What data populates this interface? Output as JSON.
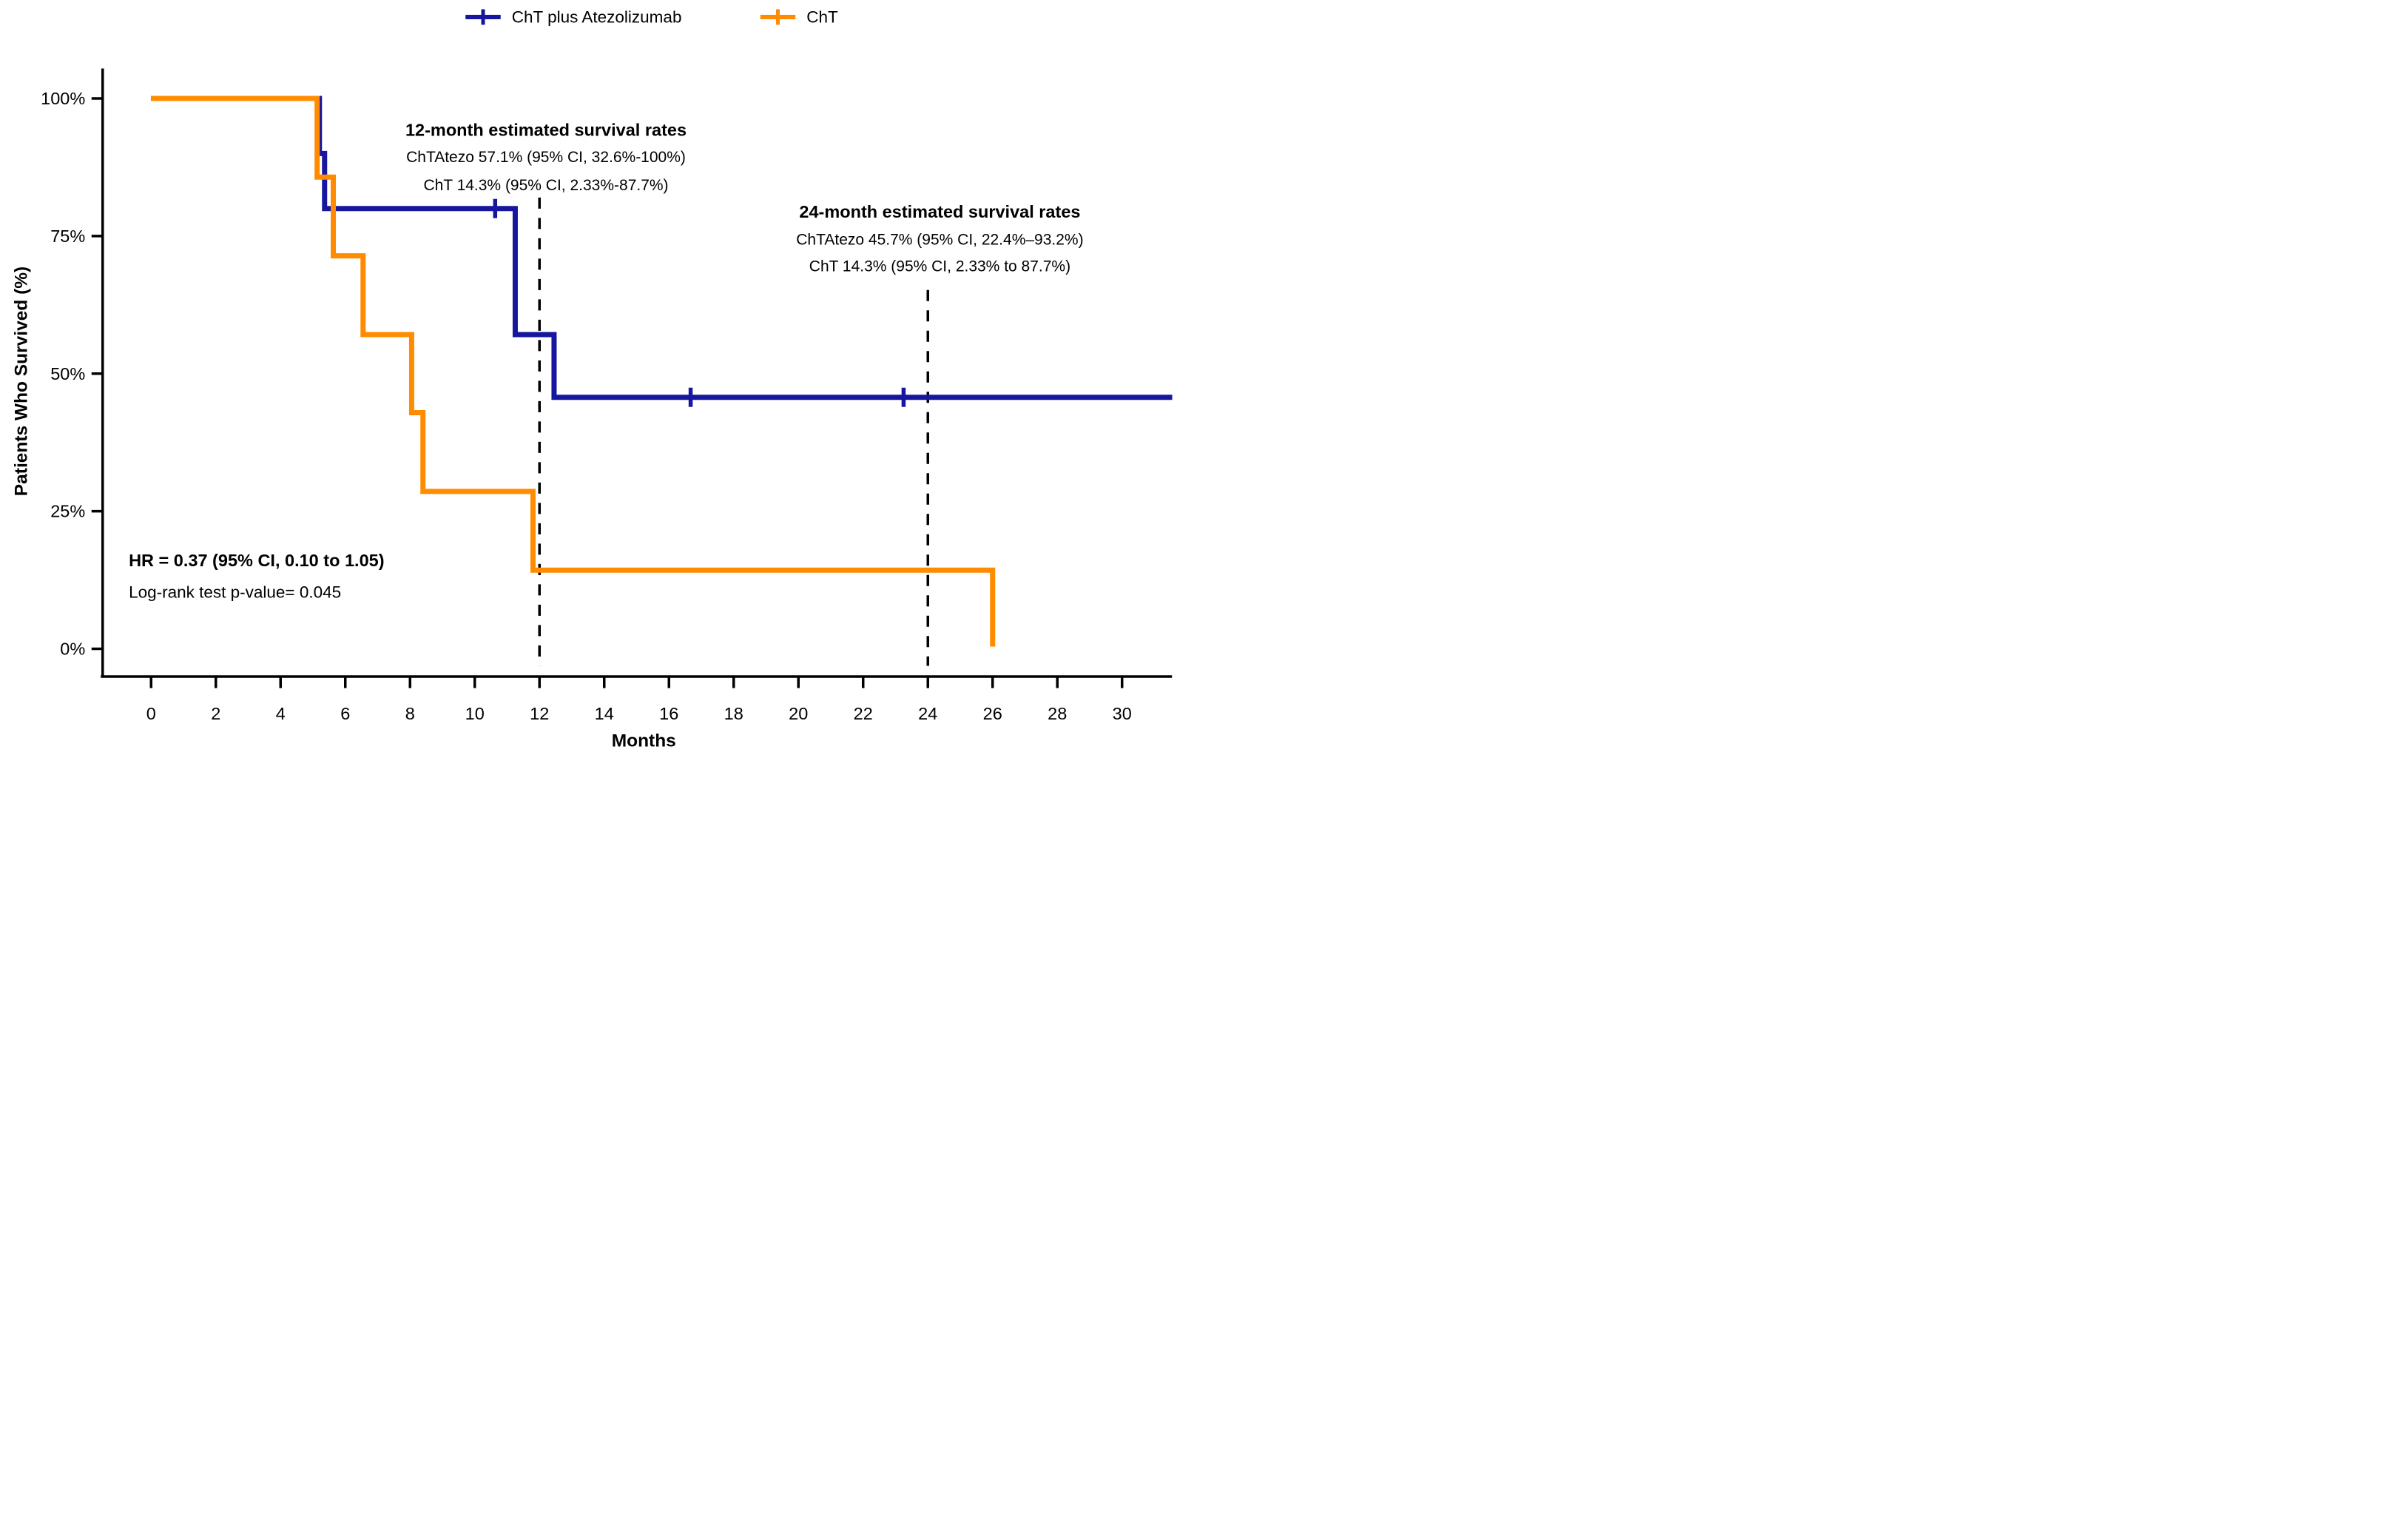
{
  "page": {
    "background": "#ffffff"
  },
  "legend": {
    "position": "top-center",
    "items": [
      {
        "label": "ChT plus Atezolizumab",
        "color": "#16169E",
        "symbol": "line-with-censor-tick"
      },
      {
        "label": "ChT",
        "color": "#FF8C00",
        "symbol": "line-with-censor-tick"
      }
    ]
  },
  "chart_data": {
    "type": "line",
    "subtype": "kaplan-meier-step",
    "title": "",
    "xlabel": "Months",
    "ylabel": "Patients Who Survived (%)",
    "xlim": [
      0,
      31.5
    ],
    "ylim": [
      0,
      100
    ],
    "grid": false,
    "legend_position": "top-center",
    "x_ticks": [
      0,
      2,
      4,
      6,
      8,
      10,
      12,
      14,
      16,
      18,
      20,
      22,
      24,
      26,
      28,
      30
    ],
    "y_ticks": [
      {
        "value": 0,
        "label": "0%"
      },
      {
        "value": 25,
        "label": "25%"
      },
      {
        "value": 50,
        "label": "50%"
      },
      {
        "value": 75,
        "label": "75%"
      },
      {
        "value": 100,
        "label": "100%"
      }
    ],
    "series": [
      {
        "name": "ChT plus Atezolizumab",
        "color": "#16169E",
        "steps": [
          [
            0,
            100
          ],
          [
            5.2,
            100
          ],
          [
            5.2,
            90
          ],
          [
            5.36,
            90
          ],
          [
            5.36,
            80
          ],
          [
            11.25,
            80
          ],
          [
            11.25,
            57.1
          ],
          [
            12.45,
            57.1
          ],
          [
            12.45,
            45.7
          ],
          [
            31.55,
            45.7
          ]
        ],
        "censor_marks": [
          [
            10.63,
            80
          ],
          [
            16.67,
            45.7
          ],
          [
            23.25,
            45.7
          ]
        ]
      },
      {
        "name": "ChT",
        "color": "#FF8C00",
        "steps": [
          [
            0,
            100
          ],
          [
            5.13,
            100
          ],
          [
            5.13,
            85.7
          ],
          [
            5.63,
            85.7
          ],
          [
            5.63,
            71.4
          ],
          [
            6.55,
            71.4
          ],
          [
            6.55,
            57.1
          ],
          [
            8.05,
            57.1
          ],
          [
            8.05,
            42.9
          ],
          [
            8.4,
            42.9
          ],
          [
            8.4,
            28.6
          ],
          [
            11.8,
            28.6
          ],
          [
            11.8,
            14.3
          ],
          [
            26.0,
            14.3
          ],
          [
            26.0,
            0.4
          ]
        ],
        "censor_marks": []
      }
    ],
    "reference_lines": [
      {
        "x": 12,
        "style": "dashed",
        "color": "#000000",
        "p_top": 82.0,
        "p_bottom": -3.1
      },
      {
        "x": 24,
        "style": "dashed",
        "color": "#000000",
        "p_top": 65.2,
        "p_bottom": -3.1
      }
    ],
    "annotations": [
      {
        "id": "rates-12-month",
        "align": "middle",
        "x": 12.2,
        "lines": [
          {
            "text": "12-month estimated survival rates",
            "p": 94.3,
            "bold": true,
            "size": 47
          },
          {
            "text": "ChTAtezo 57.1% (95% CI, 32.6%-100%)",
            "p": 89.3,
            "bold": false,
            "size": 42
          },
          {
            "text": "ChT 14.3% (95% CI, 2.33%-87.7%)",
            "p": 84.2,
            "bold": false,
            "size": 42
          }
        ]
      },
      {
        "id": "rates-24-month",
        "align": "middle",
        "x": 24.37,
        "lines": [
          {
            "text": "24-month estimated survival rates",
            "p": 79.4,
            "bold": true,
            "size": 47
          },
          {
            "text": "ChTAtezo 45.7% (95% CI, 22.4%–93.2%)",
            "p": 74.3,
            "bold": false,
            "size": 42
          },
          {
            "text": "ChT 14.3% (95% CI, 2.33% to 87.7%)",
            "p": 69.5,
            "bold": false,
            "size": 42
          }
        ]
      },
      {
        "id": "hazard-ratio",
        "align": "start",
        "x": -0.69,
        "lines": [
          {
            "text": "HR = 0.37 (95% CI, 0.10 to 1.05)",
            "p": 16.1,
            "bold": true,
            "size": 47
          },
          {
            "text": "Log-rank test p-value= 0.045",
            "p": 10.3,
            "bold": false,
            "size": 45
          }
        ]
      }
    ]
  }
}
